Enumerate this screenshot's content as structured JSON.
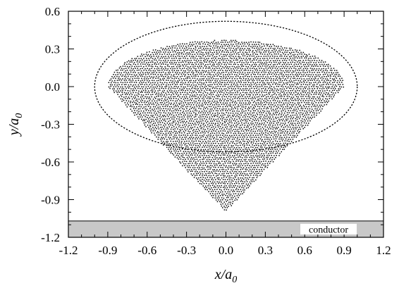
{
  "chart_data": {
    "type": "scatter",
    "title": "",
    "xlabel": {
      "base": "x/a",
      "sub": "0"
    },
    "ylabel": {
      "base": "y/a",
      "sub": "0"
    },
    "xlim": [
      -1.2,
      1.2
    ],
    "ylim": [
      -1.2,
      0.6
    ],
    "xticks": [
      -1.2,
      -0.9,
      -0.6,
      -0.3,
      0.0,
      0.3,
      0.6,
      0.9,
      1.2
    ],
    "yticks": [
      0.6,
      0.3,
      0.0,
      -0.3,
      -0.6,
      -0.9,
      -1.2
    ],
    "xtick_labels": [
      "-1.2",
      "-0.9",
      "-0.6",
      "-0.3",
      "0.0",
      "0.3",
      "0.6",
      "0.9",
      "1.2"
    ],
    "ytick_labels": [
      "0.6",
      "0.3",
      "0.0",
      "-0.3",
      "-0.6",
      "-0.9",
      "-1.2"
    ],
    "grid": false,
    "particle_cloud": {
      "shape": "ellipse top with conical bottom",
      "center_x": 0.0,
      "top_y": 0.37,
      "ellipse_center_y": 0.0,
      "half_width": 0.9,
      "vertex_y": -1.0,
      "color": "#000000"
    },
    "dashed_ellipse": {
      "center_x": 0.0,
      "center_y": 0.0,
      "half_width": 1.0,
      "half_height": 0.52,
      "style": "dashed",
      "color": "#000000"
    },
    "conductor": {
      "label": "conductor",
      "y_top": -1.07,
      "y_bottom": -1.2,
      "fill": "#c8c8c8"
    }
  }
}
